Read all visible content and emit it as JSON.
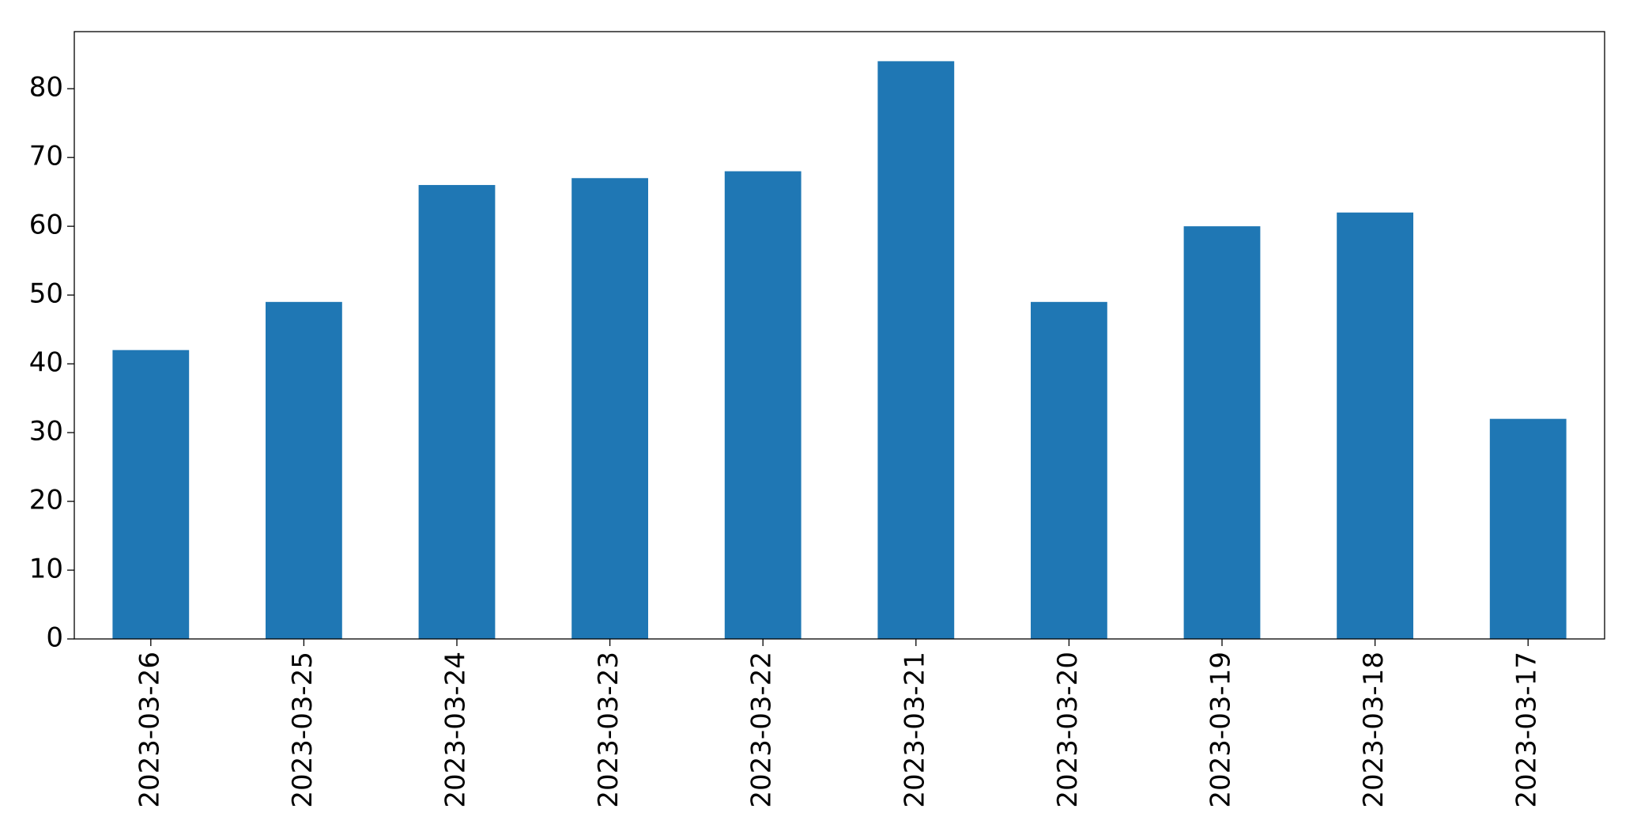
{
  "chart_data": {
    "type": "bar",
    "categories": [
      "2023-03-26",
      "2023-03-25",
      "2023-03-24",
      "2023-03-23",
      "2023-03-22",
      "2023-03-21",
      "2023-03-20",
      "2023-03-19",
      "2023-03-18",
      "2023-03-17"
    ],
    "values": [
      42,
      49,
      66,
      67,
      68,
      84,
      49,
      60,
      62,
      32
    ],
    "color": "#1f77b4",
    "ylim": [
      0,
      88.3
    ],
    "yticks": [
      0,
      10,
      20,
      30,
      40,
      50,
      60,
      70,
      80
    ],
    "grid": false
  }
}
